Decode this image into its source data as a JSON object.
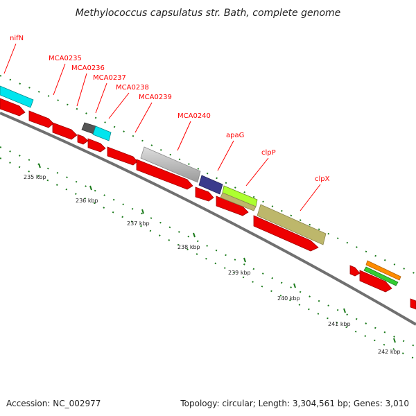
{
  "title": "Methylococcus capsulatus str. Bath, complete genome",
  "footer": {
    "accession": "Accession: NC_002977",
    "summary": "Topology: circular; Length: 3,304,561 bp; Genes: 3,010"
  },
  "colors": {
    "cds_forward": "#ff0000",
    "backbone": "#808080",
    "tick_major": "#006400",
    "tick_minor": "#008000",
    "label": "#ff0000"
  },
  "gene_labels": [
    "nifN",
    "MCA0235",
    "MCA0236",
    "MCA0237",
    "MCA0238",
    "MCA0239",
    "MCA0240",
    "apaG",
    "clpP",
    "clpX"
  ],
  "tick_labels": [
    "235 kbp",
    "236 kbp",
    "237 kbp",
    "238 kbp",
    "239 kbp",
    "240 kbp",
    "241 kbp",
    "242 kbp"
  ]
}
